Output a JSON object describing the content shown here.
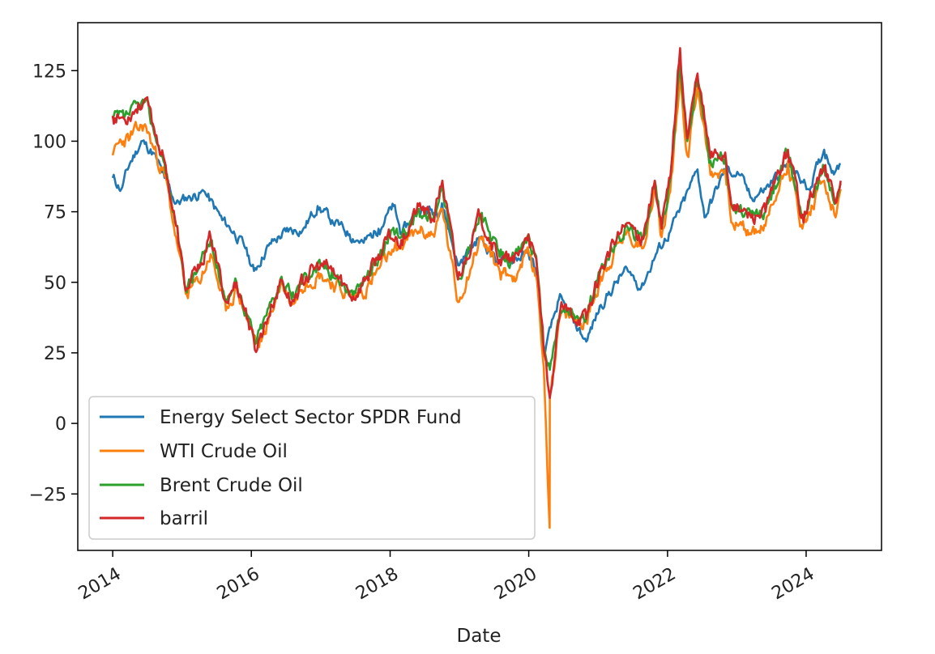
{
  "chart_data": {
    "type": "line",
    "title": "",
    "xlabel": "Date",
    "ylabel": "",
    "xlim": [
      "2013-07-01",
      "2025-02-01"
    ],
    "ylim": [
      -45,
      142
    ],
    "x_ticks": [
      {
        "date": "2014-01-01",
        "label": "2014"
      },
      {
        "date": "2016-01-01",
        "label": "2016"
      },
      {
        "date": "2018-01-01",
        "label": "2018"
      },
      {
        "date": "2020-01-01",
        "label": "2020"
      },
      {
        "date": "2022-01-01",
        "label": "2022"
      },
      {
        "date": "2024-01-01",
        "label": "2024"
      }
    ],
    "y_ticks": [
      {
        "value": 125,
        "label": "125"
      },
      {
        "value": 100,
        "label": "100"
      },
      {
        "value": 75,
        "label": "75"
      },
      {
        "value": 50,
        "label": "50"
      },
      {
        "value": 25,
        "label": "25"
      },
      {
        "value": 0,
        "label": "0"
      },
      {
        "value": -25,
        "label": "−25"
      }
    ],
    "grid": false,
    "legend_position": "lower-left",
    "series": [
      {
        "name": "Energy Select Sector SPDR Fund",
        "color": "#1f77b4",
        "points": [
          [
            "2014-01-01",
            87
          ],
          [
            "2014-02-15",
            83
          ],
          [
            "2014-04-01",
            92
          ],
          [
            "2014-06-01",
            100
          ],
          [
            "2014-08-01",
            96
          ],
          [
            "2014-10-01",
            87
          ],
          [
            "2014-12-01",
            78
          ],
          [
            "2015-02-01",
            80
          ],
          [
            "2015-05-01",
            82
          ],
          [
            "2015-08-01",
            72
          ],
          [
            "2015-10-01",
            68
          ],
          [
            "2015-12-01",
            62
          ],
          [
            "2016-01-15",
            54
          ],
          [
            "2016-04-01",
            63
          ],
          [
            "2016-07-01",
            68
          ],
          [
            "2016-10-01",
            69
          ],
          [
            "2016-12-15",
            77
          ],
          [
            "2017-03-01",
            72
          ],
          [
            "2017-06-01",
            67
          ],
          [
            "2017-08-15",
            64
          ],
          [
            "2017-11-01",
            69
          ],
          [
            "2018-01-20",
            77
          ],
          [
            "2018-03-01",
            67
          ],
          [
            "2018-06-01",
            76
          ],
          [
            "2018-09-01",
            75
          ],
          [
            "2018-10-01",
            78
          ],
          [
            "2018-12-25",
            56
          ],
          [
            "2019-04-15",
            66
          ],
          [
            "2019-08-01",
            57
          ],
          [
            "2019-12-31",
            60
          ],
          [
            "2020-02-10",
            54
          ],
          [
            "2020-03-20",
            24
          ],
          [
            "2020-06-08",
            44
          ],
          [
            "2020-10-30",
            29
          ],
          [
            "2021-01-15",
            42
          ],
          [
            "2021-06-01",
            55
          ],
          [
            "2021-08-15",
            48
          ],
          [
            "2021-11-01",
            60
          ],
          [
            "2022-01-15",
            68
          ],
          [
            "2022-04-01",
            79
          ],
          [
            "2022-06-08",
            90
          ],
          [
            "2022-07-15",
            73
          ],
          [
            "2022-11-01",
            90
          ],
          [
            "2023-01-15",
            88
          ],
          [
            "2023-03-15",
            80
          ],
          [
            "2023-06-01",
            83
          ],
          [
            "2023-09-27",
            92
          ],
          [
            "2024-01-15",
            83
          ],
          [
            "2024-04-05",
            97
          ],
          [
            "2024-06-01",
            89
          ],
          [
            "2024-07-01",
            92
          ]
        ]
      },
      {
        "name": "WTI Crude Oil",
        "color": "#ff7f0e",
        "points": [
          [
            "2014-01-01",
            95
          ],
          [
            "2014-02-15",
            100
          ],
          [
            "2014-04-01",
            101
          ],
          [
            "2014-06-20",
            106
          ],
          [
            "2014-08-01",
            98
          ],
          [
            "2014-10-01",
            88
          ],
          [
            "2014-12-01",
            66
          ],
          [
            "2015-01-20",
            46
          ],
          [
            "2015-04-01",
            50
          ],
          [
            "2015-06-01",
            60
          ],
          [
            "2015-08-20",
            40
          ],
          [
            "2015-10-15",
            48
          ],
          [
            "2015-12-15",
            36
          ],
          [
            "2016-02-11",
            27
          ],
          [
            "2016-06-08",
            50
          ],
          [
            "2016-08-01",
            42
          ],
          [
            "2016-10-15",
            51
          ],
          [
            "2016-12-31",
            53
          ],
          [
            "2017-03-01",
            50
          ],
          [
            "2017-06-20",
            44
          ],
          [
            "2017-09-01",
            48
          ],
          [
            "2017-12-31",
            60
          ],
          [
            "2018-03-01",
            63
          ],
          [
            "2018-06-01",
            68
          ],
          [
            "2018-08-15",
            67
          ],
          [
            "2018-10-03",
            76
          ],
          [
            "2018-12-24",
            43
          ],
          [
            "2019-04-23",
            66
          ],
          [
            "2019-08-01",
            54
          ],
          [
            "2019-10-15",
            52
          ],
          [
            "2019-12-31",
            61
          ],
          [
            "2020-02-15",
            50
          ],
          [
            "2020-03-20",
            20
          ],
          [
            "2020-04-20",
            -37
          ],
          [
            "2020-04-21",
            10
          ],
          [
            "2020-06-15",
            38
          ],
          [
            "2020-10-30",
            36
          ],
          [
            "2021-01-15",
            52
          ],
          [
            "2021-06-01",
            68
          ],
          [
            "2021-08-20",
            62
          ],
          [
            "2021-10-26",
            84
          ],
          [
            "2021-12-01",
            66
          ],
          [
            "2022-01-15",
            82
          ],
          [
            "2022-03-08",
            123
          ],
          [
            "2022-04-15",
            95
          ],
          [
            "2022-06-08",
            120
          ],
          [
            "2022-08-15",
            88
          ],
          [
            "2022-11-01",
            90
          ],
          [
            "2022-12-09",
            71
          ],
          [
            "2023-03-17",
            67
          ],
          [
            "2023-06-01",
            70
          ],
          [
            "2023-09-27",
            93
          ],
          [
            "2023-12-12",
            69
          ],
          [
            "2024-04-05",
            86
          ],
          [
            "2024-06-04",
            73
          ],
          [
            "2024-07-01",
            83
          ]
        ]
      },
      {
        "name": "Brent Crude Oil",
        "color": "#2ca02c",
        "points": [
          [
            "2014-01-01",
            108
          ],
          [
            "2014-03-01",
            108
          ],
          [
            "2014-06-20",
            114
          ],
          [
            "2014-08-01",
            105
          ],
          [
            "2014-10-01",
            92
          ],
          [
            "2014-12-01",
            70
          ],
          [
            "2015-01-20",
            48
          ],
          [
            "2015-04-01",
            55
          ],
          [
            "2015-06-01",
            65
          ],
          [
            "2015-08-20",
            44
          ],
          [
            "2015-10-15",
            50
          ],
          [
            "2015-12-15",
            38
          ],
          [
            "2016-01-20",
            28
          ],
          [
            "2016-06-08",
            52
          ],
          [
            "2016-08-01",
            44
          ],
          [
            "2016-10-15",
            53
          ],
          [
            "2016-12-31",
            56
          ],
          [
            "2017-03-01",
            54
          ],
          [
            "2017-06-20",
            45
          ],
          [
            "2017-09-01",
            52
          ],
          [
            "2017-12-31",
            66
          ],
          [
            "2018-03-01",
            66
          ],
          [
            "2018-06-01",
            76
          ],
          [
            "2018-08-15",
            72
          ],
          [
            "2018-10-03",
            86
          ],
          [
            "2018-12-24",
            51
          ],
          [
            "2019-04-23",
            74
          ],
          [
            "2019-08-01",
            59
          ],
          [
            "2019-10-15",
            58
          ],
          [
            "2019-12-31",
            67
          ],
          [
            "2020-02-15",
            55
          ],
          [
            "2020-03-20",
            27
          ],
          [
            "2020-04-21",
            19
          ],
          [
            "2020-06-15",
            40
          ],
          [
            "2020-10-30",
            37
          ],
          [
            "2021-01-15",
            55
          ],
          [
            "2021-06-01",
            70
          ],
          [
            "2021-08-20",
            65
          ],
          [
            "2021-10-26",
            86
          ],
          [
            "2021-12-01",
            69
          ],
          [
            "2022-01-15",
            86
          ],
          [
            "2022-03-08",
            128
          ],
          [
            "2022-04-15",
            100
          ],
          [
            "2022-06-08",
            122
          ],
          [
            "2022-08-15",
            93
          ],
          [
            "2022-11-01",
            95
          ],
          [
            "2022-12-09",
            76
          ],
          [
            "2023-03-17",
            73
          ],
          [
            "2023-06-01",
            75
          ],
          [
            "2023-09-27",
            96
          ],
          [
            "2023-12-12",
            74
          ],
          [
            "2024-04-05",
            91
          ],
          [
            "2024-06-04",
            78
          ],
          [
            "2024-07-01",
            85
          ]
        ]
      },
      {
        "name": "barril",
        "color": "#d62728",
        "points": [
          [
            "2014-01-01",
            109
          ],
          [
            "2014-03-01",
            108
          ],
          [
            "2014-06-20",
            115
          ],
          [
            "2014-08-01",
            106
          ],
          [
            "2014-10-01",
            93
          ],
          [
            "2014-12-01",
            70
          ],
          [
            "2015-01-20",
            47
          ],
          [
            "2015-04-01",
            55
          ],
          [
            "2015-06-01",
            66
          ],
          [
            "2015-08-20",
            43
          ],
          [
            "2015-10-15",
            50
          ],
          [
            "2015-12-15",
            37
          ],
          [
            "2016-01-20",
            26
          ],
          [
            "2016-06-08",
            51
          ],
          [
            "2016-08-01",
            43
          ],
          [
            "2016-10-15",
            52
          ],
          [
            "2016-12-31",
            56
          ],
          [
            "2017-03-01",
            54
          ],
          [
            "2017-06-20",
            45
          ],
          [
            "2017-09-01",
            52
          ],
          [
            "2017-12-31",
            66
          ],
          [
            "2018-03-01",
            65
          ],
          [
            "2018-06-01",
            77
          ],
          [
            "2018-08-15",
            72
          ],
          [
            "2018-10-03",
            86
          ],
          [
            "2018-12-24",
            51
          ],
          [
            "2019-04-23",
            74
          ],
          [
            "2019-08-01",
            58
          ],
          [
            "2019-10-15",
            57
          ],
          [
            "2019-12-31",
            67
          ],
          [
            "2020-02-15",
            54
          ],
          [
            "2020-03-20",
            26
          ],
          [
            "2020-04-21",
            9
          ],
          [
            "2020-06-15",
            40
          ],
          [
            "2020-10-30",
            37
          ],
          [
            "2021-01-15",
            55
          ],
          [
            "2021-06-01",
            71
          ],
          [
            "2021-08-20",
            66
          ],
          [
            "2021-10-26",
            86
          ],
          [
            "2021-12-01",
            69
          ],
          [
            "2022-01-15",
            87
          ],
          [
            "2022-03-08",
            133
          ],
          [
            "2022-04-15",
            101
          ],
          [
            "2022-06-08",
            124
          ],
          [
            "2022-08-15",
            94
          ],
          [
            "2022-11-01",
            96
          ],
          [
            "2022-12-09",
            77
          ],
          [
            "2023-03-17",
            73
          ],
          [
            "2023-06-01",
            75
          ],
          [
            "2023-09-27",
            97
          ],
          [
            "2023-12-12",
            74
          ],
          [
            "2024-04-05",
            91
          ],
          [
            "2024-06-04",
            78
          ],
          [
            "2024-07-01",
            86
          ]
        ]
      }
    ]
  }
}
